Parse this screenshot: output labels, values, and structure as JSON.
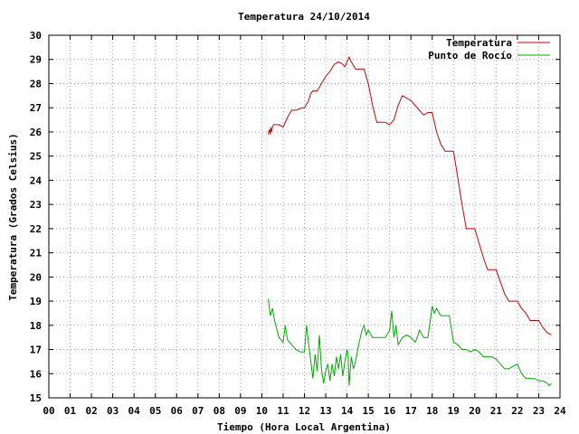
{
  "chart_data": {
    "type": "line",
    "title": "Temperatura 24/10/2014",
    "xlabel": "Tiempo (Hora Local Argentina)",
    "ylabel": "Temperatura (Grados Celsius)",
    "xlim": [
      0,
      24
    ],
    "ylim": [
      15,
      30
    ],
    "x_ticks": [
      0,
      1,
      2,
      3,
      4,
      5,
      6,
      7,
      8,
      9,
      10,
      11,
      12,
      13,
      14,
      15,
      16,
      17,
      18,
      19,
      20,
      21,
      22,
      23,
      24
    ],
    "x_tick_labels": [
      "00",
      "01",
      "02",
      "03",
      "04",
      "05",
      "06",
      "07",
      "08",
      "09",
      "10",
      "11",
      "12",
      "13",
      "14",
      "15",
      "16",
      "17",
      "18",
      "19",
      "20",
      "21",
      "22",
      "23",
      "24"
    ],
    "y_ticks": [
      15,
      16,
      17,
      18,
      19,
      20,
      21,
      22,
      23,
      24,
      25,
      26,
      27,
      28,
      29,
      30
    ],
    "grid": true,
    "legend_position": "top-right",
    "series": [
      {
        "name": "Temperatura",
        "color": "#cc0000",
        "x": [
          10.3,
          10.35,
          10.4,
          10.42,
          10.45,
          10.5,
          10.55,
          10.6,
          10.8,
          11.0,
          11.2,
          11.4,
          11.6,
          11.9,
          12.0,
          12.2,
          12.3,
          12.4,
          12.6,
          12.8,
          13.0,
          13.2,
          13.4,
          13.6,
          13.8,
          13.9,
          14.0,
          14.1,
          14.2,
          14.4,
          14.6,
          14.8,
          15.0,
          15.2,
          15.4,
          15.6,
          15.8,
          16.0,
          16.2,
          16.4,
          16.6,
          16.8,
          17.0,
          17.2,
          17.4,
          17.6,
          17.8,
          18.0,
          18.2,
          18.4,
          18.6,
          18.8,
          19.0,
          19.2,
          19.4,
          19.6,
          19.8,
          20.0,
          20.2,
          20.4,
          20.6,
          20.8,
          21.0,
          21.2,
          21.4,
          21.6,
          21.8,
          22.0,
          22.2,
          22.4,
          22.6,
          22.8,
          23.0,
          23.2,
          23.4,
          23.6
        ],
        "y": [
          25.9,
          26.1,
          25.9,
          26.2,
          26.0,
          26.2,
          26.3,
          26.3,
          26.3,
          26.2,
          26.6,
          26.9,
          26.9,
          27.0,
          27.0,
          27.3,
          27.6,
          27.7,
          27.7,
          28.0,
          28.3,
          28.5,
          28.8,
          28.9,
          28.8,
          28.7,
          28.9,
          29.1,
          28.9,
          28.6,
          28.6,
          28.6,
          28.0,
          27.1,
          26.4,
          26.4,
          26.4,
          26.3,
          26.5,
          27.1,
          27.5,
          27.4,
          27.3,
          27.1,
          26.9,
          26.7,
          26.8,
          26.8,
          26.0,
          25.5,
          25.2,
          25.2,
          25.2,
          24.1,
          23.0,
          22.0,
          22.0,
          22.0,
          21.4,
          20.8,
          20.3,
          20.3,
          20.3,
          19.8,
          19.3,
          19.0,
          19.0,
          19.0,
          18.7,
          18.5,
          18.2,
          18.2,
          18.2,
          17.9,
          17.7,
          17.6
        ]
      },
      {
        "name": "Punto de Rocío",
        "color": "#00aa00",
        "x": [
          10.3,
          10.4,
          10.5,
          10.6,
          10.8,
          11.0,
          11.1,
          11.2,
          11.4,
          11.6,
          11.8,
          12.0,
          12.1,
          12.2,
          12.3,
          12.4,
          12.5,
          12.6,
          12.7,
          12.8,
          12.9,
          13.0,
          13.1,
          13.2,
          13.3,
          13.4,
          13.5,
          13.6,
          13.7,
          13.8,
          13.9,
          14.0,
          14.05,
          14.1,
          14.2,
          14.3,
          14.4,
          14.5,
          14.6,
          14.7,
          14.8,
          14.9,
          15.0,
          15.2,
          15.4,
          15.6,
          15.8,
          16.0,
          16.1,
          16.2,
          16.3,
          16.4,
          16.6,
          16.8,
          17.0,
          17.2,
          17.3,
          17.4,
          17.6,
          17.8,
          18.0,
          18.1,
          18.2,
          18.4,
          18.6,
          18.8,
          19.0,
          19.2,
          19.4,
          19.6,
          19.8,
          20.0,
          20.2,
          20.4,
          20.6,
          20.8,
          21.0,
          21.2,
          21.4,
          21.6,
          21.8,
          22.0,
          22.2,
          22.4,
          22.6,
          22.8,
          23.0,
          23.2,
          23.4,
          23.5,
          23.6
        ],
        "y": [
          19.1,
          18.4,
          18.7,
          18.2,
          17.5,
          17.3,
          18.0,
          17.4,
          17.2,
          17.0,
          16.9,
          16.9,
          18.0,
          17.2,
          16.5,
          15.8,
          16.8,
          16.1,
          17.6,
          16.2,
          15.6,
          16.1,
          16.4,
          15.7,
          16.4,
          15.9,
          16.7,
          16.2,
          16.8,
          15.9,
          16.5,
          17.0,
          16.8,
          15.5,
          16.7,
          16.2,
          16.5,
          17.0,
          17.4,
          17.8,
          18.0,
          17.6,
          17.8,
          17.5,
          17.5,
          17.5,
          17.5,
          17.8,
          18.6,
          17.5,
          18.0,
          17.2,
          17.5,
          17.6,
          17.5,
          17.3,
          17.5,
          17.8,
          17.5,
          17.5,
          18.8,
          18.5,
          18.7,
          18.4,
          18.4,
          18.4,
          17.3,
          17.2,
          17.0,
          17.0,
          16.9,
          17.0,
          16.9,
          16.7,
          16.7,
          16.7,
          16.6,
          16.4,
          16.2,
          16.2,
          16.3,
          16.4,
          16.0,
          15.8,
          15.8,
          15.8,
          15.7,
          15.7,
          15.6,
          15.5,
          15.6
        ]
      }
    ]
  }
}
